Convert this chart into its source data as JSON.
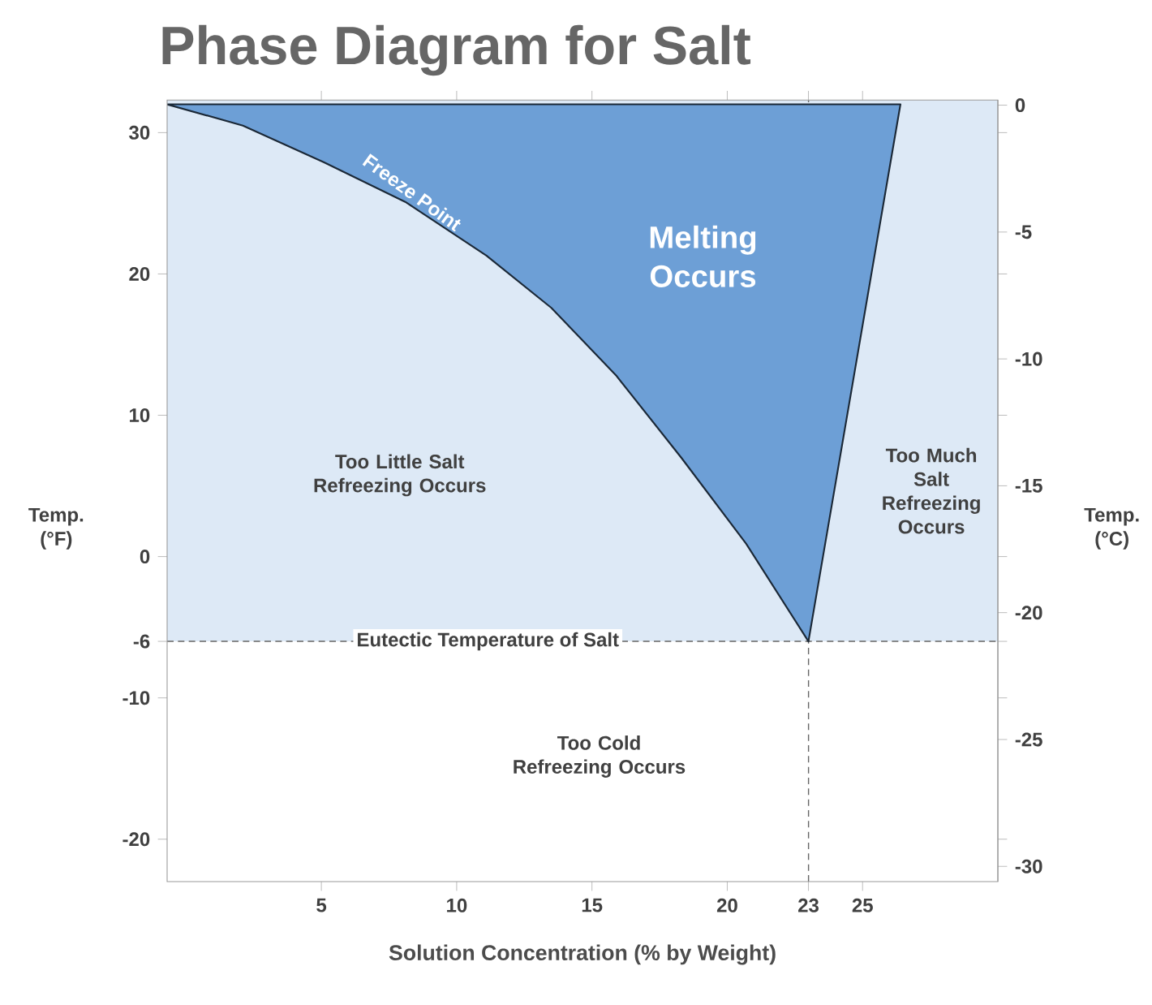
{
  "chart_data": {
    "type": "area",
    "title": "Phase Diagram for Salt",
    "xlabel": "Solution Concentration (% by Weight)",
    "ylabel": "Temp. (°F)",
    "y2label": "Temp. (°C)",
    "series": [
      {
        "name": "Freeze Point",
        "color": "#6d9fd6",
        "x": [
          -0.7,
          2.1,
          5.1,
          8.1,
          11.1,
          13.5,
          15.9,
          18.3,
          20.7,
          23,
          26.4
        ],
        "values": [
          32,
          30.5,
          27.9,
          25.1,
          21.3,
          17.6,
          12.8,
          7.0,
          0.9,
          -6,
          32
        ]
      }
    ],
    "xlim": [
      -0.7,
      30
    ],
    "xticks": [
      5,
      10,
      15,
      20,
      23,
      25
    ],
    "ylim": [
      -23,
      32.3
    ],
    "yticks": [
      30,
      20,
      10,
      0,
      -6,
      -10,
      -20
    ],
    "y2lim": [
      -30.6,
      0.2
    ],
    "y2ticks": [
      0,
      -5,
      -10,
      -15,
      -20,
      -25,
      -30
    ],
    "bands": [
      {
        "axis": "y",
        "from": -6,
        "to": 32.3,
        "color": "#dde9f6"
      }
    ],
    "ref_lines": [
      {
        "axis": "y",
        "value": -6,
        "label": "Eutectic Temperature of Salt",
        "line_style": "dashed"
      },
      {
        "axis": "x",
        "value": 23,
        "line_style": "dashed"
      }
    ],
    "annotations": [
      "Too Little Salt Refreezing Occurs",
      "Too Much Salt Refreezing Occurs",
      "Too Cold Refreezing Occurs",
      "Melting Occurs"
    ]
  }
}
